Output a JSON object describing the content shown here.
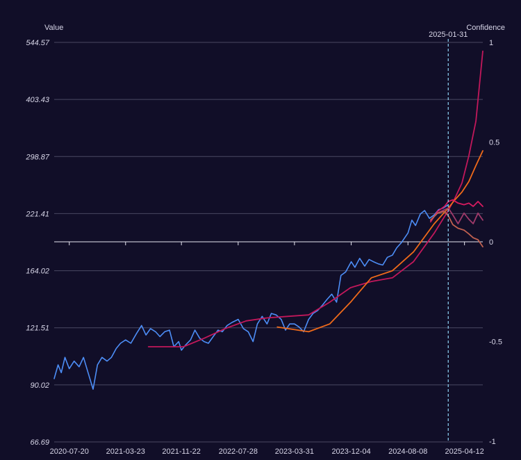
{
  "chart_data": {
    "type": "line",
    "ylabel": "Value",
    "y2label": "Confidence",
    "y_scale": "log",
    "ylim": [
      66.69,
      544.57
    ],
    "y_ticks": [
      "544.57",
      "403.43",
      "298.87",
      "221.41",
      "164.02",
      "121.51",
      "90.02",
      "66.69"
    ],
    "y2lim": [
      -1,
      1
    ],
    "y2_ticks": [
      "1",
      "0.5",
      "0",
      "-0.5",
      "-1"
    ],
    "xlim": [
      "2020-05-15",
      "2025-07-01"
    ],
    "x_ticks": [
      "2020-07-20",
      "2021-03-23",
      "2021-11-22",
      "2022-07-28",
      "2023-03-31",
      "2023-12-04",
      "2024-08-08",
      "2025-04-12"
    ],
    "marker": {
      "date": "2025-01-31",
      "label": "2025-01-31"
    },
    "grid": true,
    "colors": {
      "actual": "#4d8ef7",
      "forecast_a": "#c2185b",
      "forecast_b": "#f06a1a",
      "forecast_c": "#d81b60",
      "forecast_d": "#a03a6a",
      "forecast_e": "#c06050",
      "marker": "#8fd3f4"
    },
    "series": [
      {
        "role": "actual",
        "x": [
          "2020-05-15",
          "2020-06-01",
          "2020-06-15",
          "2020-07-01",
          "2020-07-20",
          "2020-08-10",
          "2020-09-01",
          "2020-09-20",
          "2020-10-10",
          "2020-11-01",
          "2020-11-20",
          "2020-12-10",
          "2021-01-01",
          "2021-01-20",
          "2021-02-10",
          "2021-03-01",
          "2021-03-23",
          "2021-04-15",
          "2021-05-10",
          "2021-06-01",
          "2021-06-20",
          "2021-07-10",
          "2021-08-01",
          "2021-08-20",
          "2021-09-10",
          "2021-10-01",
          "2021-10-20",
          "2021-11-10",
          "2021-11-22",
          "2021-12-10",
          "2022-01-01",
          "2022-01-20",
          "2022-02-10",
          "2022-03-01",
          "2022-03-20",
          "2022-04-10",
          "2022-05-01",
          "2022-05-20",
          "2022-06-10",
          "2022-07-01",
          "2022-07-28",
          "2022-08-20",
          "2022-09-10",
          "2022-10-01",
          "2022-10-20",
          "2022-11-10",
          "2022-12-01",
          "2022-12-20",
          "2023-01-10",
          "2023-02-01",
          "2023-02-20",
          "2023-03-10",
          "2023-03-31",
          "2023-04-20",
          "2023-05-10",
          "2023-06-01",
          "2023-06-20",
          "2023-07-10",
          "2023-08-01",
          "2023-08-20",
          "2023-09-10",
          "2023-10-01",
          "2023-10-20",
          "2023-11-10",
          "2023-12-04",
          "2023-12-20",
          "2024-01-10",
          "2024-02-01",
          "2024-02-20",
          "2024-03-10",
          "2024-04-01",
          "2024-04-20",
          "2024-05-10",
          "2024-06-01",
          "2024-06-20",
          "2024-07-10",
          "2024-08-08",
          "2024-08-25",
          "2024-09-10",
          "2024-10-01",
          "2024-10-20",
          "2024-11-10",
          "2024-12-01",
          "2024-12-20",
          "2025-01-10",
          "2025-01-31"
        ],
        "values": [
          93,
          100,
          96,
          104,
          98,
          102,
          99,
          104,
          96,
          88,
          100,
          104,
          102,
          104,
          109,
          112,
          114,
          112,
          118,
          123,
          117,
          121,
          119,
          116,
          119,
          120,
          110,
          113,
          108,
          111,
          114,
          120,
          115,
          113,
          112,
          116,
          120,
          119,
          123,
          125,
          127,
          121,
          119,
          113,
          124,
          129,
          124,
          131,
          130,
          127,
          120,
          124,
          124,
          122,
          119,
          127,
          131,
          133,
          137,
          141,
          145,
          139,
          160,
          163,
          172,
          167,
          175,
          168,
          174,
          172,
          170,
          169,
          176,
          178,
          185,
          190,
          200,
          214,
          208,
          221,
          225,
          216,
          220,
          226,
          228,
          232
        ]
      },
      {
        "role": "forecast_a",
        "x": [
          "2021-07-01",
          "2021-12-01",
          "2022-03-01",
          "2022-06-01",
          "2022-09-01",
          "2022-12-01",
          "2023-03-01",
          "2023-06-01",
          "2023-09-01",
          "2023-12-01",
          "2024-03-01",
          "2024-06-01",
          "2024-09-01",
          "2024-12-01",
          "2025-01-31",
          "2025-03-01",
          "2025-04-01",
          "2025-05-01",
          "2025-06-01",
          "2025-07-01"
        ],
        "values": [
          110,
          110,
          115,
          121,
          126,
          128,
          129,
          130,
          139,
          150,
          155,
          158,
          172,
          200,
          225,
          240,
          260,
          300,
          360,
          520
        ]
      },
      {
        "role": "forecast_b",
        "x": [
          "2023-01-15",
          "2023-06-01",
          "2023-09-01",
          "2023-12-01",
          "2024-03-01",
          "2024-06-01",
          "2024-09-01",
          "2024-12-01",
          "2025-01-31",
          "2025-03-01",
          "2025-04-01",
          "2025-05-01",
          "2025-06-01",
          "2025-07-01"
        ],
        "values": [
          122,
          119,
          124,
          139,
          158,
          164,
          181,
          210,
          228,
          238,
          248,
          262,
          285,
          308
        ]
      },
      {
        "role": "forecast_c",
        "x": [
          "2024-11-15",
          "2024-12-15",
          "2025-01-15",
          "2025-01-31",
          "2025-02-20",
          "2025-03-15",
          "2025-04-10",
          "2025-05-01",
          "2025-05-20",
          "2025-06-10",
          "2025-07-01"
        ],
        "values": [
          212,
          224,
          230,
          236,
          238,
          234,
          232,
          234,
          230,
          236,
          230
        ]
      },
      {
        "role": "forecast_d",
        "x": [
          "2024-11-15",
          "2024-12-15",
          "2025-01-15",
          "2025-01-31",
          "2025-02-20",
          "2025-03-15",
          "2025-04-10",
          "2025-05-01",
          "2025-05-20",
          "2025-06-10",
          "2025-07-01"
        ],
        "values": [
          214,
          222,
          226,
          228,
          220,
          210,
          222,
          215,
          210,
          222,
          214
        ]
      },
      {
        "role": "forecast_e",
        "x": [
          "2024-11-15",
          "2024-12-15",
          "2025-01-15",
          "2025-01-31",
          "2025-02-20",
          "2025-03-15",
          "2025-04-10",
          "2025-05-01",
          "2025-05-20",
          "2025-06-10",
          "2025-07-01"
        ],
        "values": [
          214,
          222,
          224,
          219,
          209,
          205,
          203,
          199,
          195,
          193,
          186
        ]
      }
    ]
  }
}
